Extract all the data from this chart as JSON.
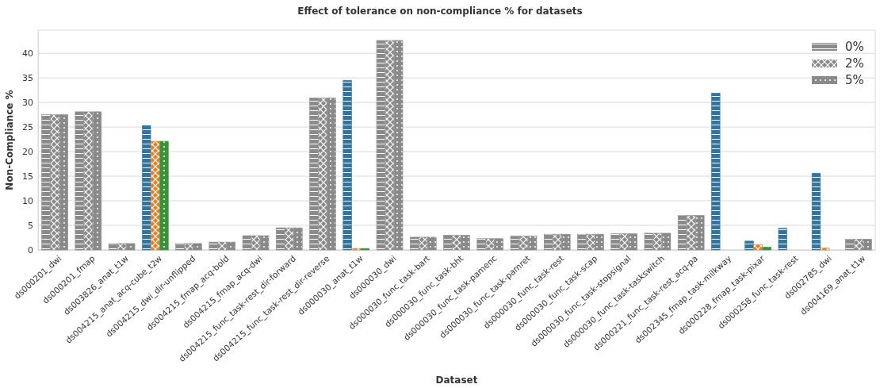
{
  "chart_data": {
    "type": "bar",
    "title": "Effect of tolerance on non-compliance % for datasets",
    "xlabel": "Dataset",
    "ylabel": "Non-Compliance %",
    "categories": [
      "ds000201_dwi",
      "ds000201_fmap",
      "ds003826_anat_t1w",
      "ds004215_anat_acq-cube_t2w",
      "ds004215_dwi_dir-unflipped",
      "ds004215_fmap_acq-bold",
      "ds004215_fmap_acq-dwi",
      "ds004215_func_task-rest_dir-forward",
      "ds004215_func_task-rest_dir-reverse",
      "ds000030_anat_t1w",
      "ds000030_dwi",
      "ds000030_func_task-bart",
      "ds000030_func_task-bht",
      "ds000030_func_task-pamenc",
      "ds000030_func_task-pamret",
      "ds000030_func_task-rest",
      "ds000030_func_task-scap",
      "ds000030_func_task-stopsignal",
      "ds000030_func_task-taskswitch",
      "ds000221_func_task-rest_acq-pa",
      "ds002345_fmap_task-milkway",
      "ds000228_fmap_task-pixar",
      "ds000258_func_task-rest",
      "ds002785_dwi",
      "ds004169_anat_t1w"
    ],
    "series": [
      {
        "name": "0%",
        "color": "#8a8a8a",
        "colors": [
          "#8a8a8a",
          "#8a8a8a",
          "#8a8a8a",
          "#3274a1",
          "#8a8a8a",
          "#8a8a8a",
          "#8a8a8a",
          "#8a8a8a",
          "#8a8a8a",
          "#3274a1",
          "#8a8a8a",
          "#8a8a8a",
          "#8a8a8a",
          "#8a8a8a",
          "#8a8a8a",
          "#8a8a8a",
          "#8a8a8a",
          "#8a8a8a",
          "#8a8a8a",
          "#8a8a8a",
          "#3274a1",
          "#3274a1",
          "#3274a1",
          "#3274a1",
          "#8a8a8a"
        ],
        "values": [
          27.5,
          28.1,
          1.3,
          25.3,
          1.3,
          1.6,
          2.9,
          4.5,
          30.9,
          34.5,
          42.6,
          2.6,
          3.0,
          2.3,
          2.8,
          3.2,
          3.2,
          3.3,
          3.4,
          7.0,
          31.9,
          1.8,
          4.4,
          15.6,
          2.2
        ]
      },
      {
        "name": "2%",
        "color": "#8a8a8a",
        "colors": [
          "#8a8a8a",
          "#8a8a8a",
          "#8a8a8a",
          "#e1812c",
          "#8a8a8a",
          "#8a8a8a",
          "#8a8a8a",
          "#8a8a8a",
          "#8a8a8a",
          "#e1812c",
          "#8a8a8a",
          "#8a8a8a",
          "#8a8a8a",
          "#8a8a8a",
          "#8a8a8a",
          "#8a8a8a",
          "#8a8a8a",
          "#8a8a8a",
          "#8a8a8a",
          "#8a8a8a",
          "#e1812c",
          "#e1812c",
          "#e1812c",
          "#e1812c",
          "#8a8a8a"
        ],
        "values": [
          27.5,
          28.1,
          1.3,
          22.1,
          1.3,
          1.6,
          2.9,
          4.5,
          30.9,
          0.3,
          42.6,
          2.6,
          3.0,
          2.3,
          2.8,
          3.2,
          3.2,
          3.3,
          3.4,
          7.0,
          0,
          1.1,
          0,
          0.4,
          2.2
        ]
      },
      {
        "name": "5%",
        "color": "#8a8a8a",
        "colors": [
          "#8a8a8a",
          "#8a8a8a",
          "#8a8a8a",
          "#3a923a",
          "#8a8a8a",
          "#8a8a8a",
          "#8a8a8a",
          "#8a8a8a",
          "#8a8a8a",
          "#3a923a",
          "#8a8a8a",
          "#8a8a8a",
          "#8a8a8a",
          "#8a8a8a",
          "#8a8a8a",
          "#8a8a8a",
          "#8a8a8a",
          "#8a8a8a",
          "#8a8a8a",
          "#8a8a8a",
          "#3a923a",
          "#3a923a",
          "#3a923a",
          "#3a923a",
          "#8a8a8a"
        ],
        "values": [
          27.5,
          28.1,
          1.3,
          22.1,
          1.3,
          1.6,
          2.9,
          4.5,
          30.9,
          0.3,
          42.6,
          2.6,
          3.0,
          2.3,
          2.8,
          3.2,
          3.2,
          3.3,
          3.4,
          7.0,
          0,
          0.6,
          0,
          0,
          2.2
        ]
      }
    ],
    "ylim": [
      0,
      44.7
    ],
    "yticks": [
      0,
      5,
      10,
      15,
      20,
      25,
      30,
      35,
      40
    ],
    "grid": "y",
    "legend": "top right"
  }
}
